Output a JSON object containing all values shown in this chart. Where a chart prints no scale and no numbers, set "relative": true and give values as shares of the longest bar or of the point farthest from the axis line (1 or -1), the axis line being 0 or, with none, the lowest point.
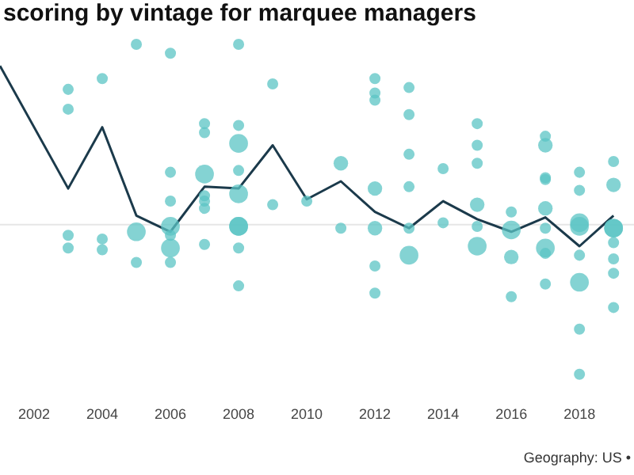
{
  "chart_data": {
    "type": "bubble",
    "title": "scoring by vintage for marquee managers",
    "relative": true,
    "xlim": [
      2001,
      2019.6
    ],
    "xticks": [
      2002,
      2004,
      2006,
      2008,
      2010,
      2012,
      2014,
      2016,
      2018
    ],
    "annotations": [
      "Geography: US •"
    ],
    "ref_lines": [
      {
        "axis": "y",
        "value": 0,
        "color": "#e6e6e6"
      }
    ],
    "series": [
      {
        "color": "#5bc4c4",
        "x": [
          2003,
          2003,
          2003,
          2003,
          2004,
          2004,
          2004,
          2005,
          2005,
          2005,
          2006,
          2006,
          2006,
          2006,
          2006,
          2006,
          2006,
          2007,
          2007,
          2007,
          2007,
          2007,
          2007,
          2007,
          2008,
          2008,
          2008,
          2008,
          2008,
          2008,
          2008,
          2008,
          2008,
          2009,
          2009,
          2010,
          2011,
          2011,
          2012,
          2012,
          2012,
          2012,
          2012,
          2012,
          2012,
          2013,
          2013,
          2013,
          2013,
          2013,
          2013,
          2014,
          2014,
          2015,
          2015,
          2015,
          2015,
          2015,
          2015,
          2016,
          2016,
          2016,
          2016,
          2017,
          2017,
          2017,
          2017,
          2017,
          2017,
          2017,
          2017,
          2017,
          2018,
          2018,
          2018,
          2018,
          2018,
          2018,
          2018,
          2018,
          2019,
          2019,
          2019,
          2019,
          2019,
          2019,
          2019,
          2019
        ],
        "values": [
          0.75,
          0.64,
          -0.06,
          -0.13,
          0.81,
          -0.08,
          -0.14,
          1,
          -0.04,
          -0.21,
          0.95,
          0.29,
          0.13,
          -0.01,
          -0.06,
          -0.13,
          -0.21,
          0.56,
          0.51,
          0.28,
          0.16,
          0.13,
          0.09,
          -0.11,
          1,
          0.55,
          0.45,
          0.3,
          0.17,
          -0.01,
          -0.01,
          -0.13,
          -0.34,
          0.78,
          0.11,
          0.13,
          0.34,
          -0.02,
          0.81,
          0.73,
          0.69,
          0.2,
          -0.02,
          -0.23,
          -0.38,
          0.76,
          0.61,
          0.39,
          0.21,
          -0.02,
          -0.17,
          0.31,
          0.01,
          0.56,
          0.44,
          0.34,
          0.11,
          -0.01,
          -0.12,
          0.07,
          -0.03,
          -0.18,
          -0.4,
          0.49,
          0.44,
          0.26,
          0.25,
          0.09,
          -0.02,
          -0.13,
          -0.16,
          -0.33,
          0.29,
          0.19,
          0.01,
          -0.01,
          -0.17,
          -0.32,
          -0.58,
          -0.83,
          0.35,
          0.22,
          -0.02,
          -0.02,
          -0.1,
          -0.19,
          -0.27,
          -0.46
        ],
        "sizes": [
          0.35,
          0.35,
          0.35,
          0.35,
          0.35,
          0.35,
          0.35,
          0.35,
          1,
          0.35,
          0.35,
          0.35,
          0.35,
          1,
          0.35,
          1,
          0.35,
          0.35,
          0.35,
          1,
          0.35,
          0.35,
          0.35,
          0.35,
          0.35,
          0.35,
          1,
          0.35,
          1,
          1,
          1,
          0.35,
          0.35,
          0.35,
          0.35,
          0.35,
          0.6,
          0.35,
          0.35,
          0.35,
          0.35,
          0.6,
          0.6,
          0.35,
          0.35,
          0.35,
          0.35,
          0.35,
          0.35,
          0.35,
          1,
          0.35,
          0.35,
          0.35,
          0.35,
          0.35,
          0.6,
          0.35,
          1,
          0.35,
          1,
          0.6,
          0.35,
          0.35,
          0.6,
          0.35,
          0.35,
          0.6,
          0.35,
          1,
          0.35,
          0.35,
          0.35,
          0.35,
          1,
          1,
          0.35,
          1,
          0.35,
          0.35,
          0.35,
          0.6,
          1,
          1,
          0.35,
          0.35,
          0.35,
          0.35
        ]
      },
      {
        "type": "line",
        "color": "#1b3a4b",
        "x": [
          2001,
          2003,
          2004,
          2005,
          2006,
          2007,
          2008,
          2009,
          2010,
          2011,
          2012,
          2013,
          2014,
          2015,
          2016,
          2017,
          2018,
          2019
        ],
        "values": [
          0.88,
          0.2,
          0.54,
          0.05,
          -0.04,
          0.21,
          0.2,
          0.44,
          0.14,
          0.24,
          0.07,
          -0.02,
          0.13,
          0.03,
          -0.04,
          0.04,
          -0.12,
          0.05
        ]
      }
    ]
  }
}
